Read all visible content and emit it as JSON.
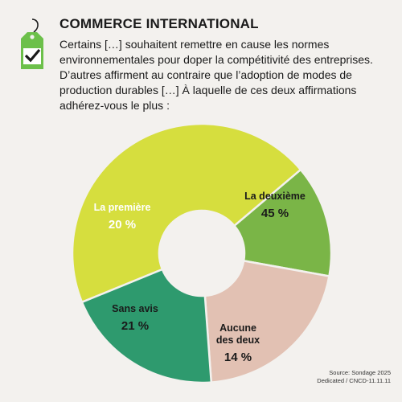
{
  "header": {
    "title": "COMMERCE INTERNATIONAL",
    "question_lines": [
      "Certains […] souhaitent remettre en cause les normes",
      "environnementales pour doper la compétitivité des entreprises.",
      "D’autres affirment au contraire que l’adoption de modes de",
      "production durables […] À laquelle de ces deux affirmations",
      "adhérez-vous le plus :"
    ]
  },
  "icons": {
    "header_icon": "price-tag-check-icon"
  },
  "colors": {
    "background": "#f3f1ee",
    "tag": "#6cc04a",
    "deuxieme": "#d6de3e",
    "aucune": "#7ab547",
    "sans_avis": "#e2c1b3",
    "premiere": "#2e9a6e"
  },
  "chart_data": {
    "type": "pie",
    "donut": true,
    "slices": [
      {
        "label_lines": [
          "La deuxième"
        ],
        "value": 45,
        "value_label": "45 %",
        "color": "#d6de3e",
        "label_color": "#1a1a1a"
      },
      {
        "label_lines": [
          "Aucune",
          "des deux"
        ],
        "value": 14,
        "value_label": "14 %",
        "color": "#7ab547",
        "label_color": "#1a1a1a"
      },
      {
        "label_lines": [
          "Sans avis"
        ],
        "value": 21,
        "value_label": "21 %",
        "color": "#e2c1b3",
        "label_color": "#1a1a1a"
      },
      {
        "label_lines": [
          "La première"
        ],
        "value": 20,
        "value_label": "20 %",
        "color": "#2e9a6e",
        "label_color": "#ffffff"
      }
    ]
  },
  "source": {
    "line1": "Source: Sondage 2025",
    "line2": "Dedicated / CNCD-11.11.11"
  }
}
